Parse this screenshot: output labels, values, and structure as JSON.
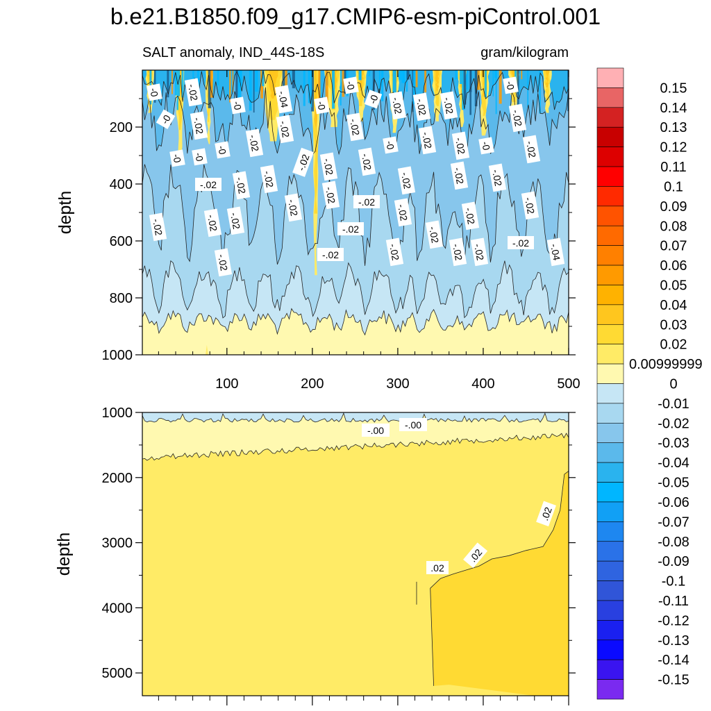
{
  "chart_data": {
    "type": "contour",
    "title": "b.e21.B1850.f09_g17.CMIP6-esm-piControl.001",
    "panels": [
      {
        "name": "upper",
        "left_string": "SALT anomaly, IND_44S-18S",
        "right_string": "gram/kilogram",
        "ylabel": "depth",
        "ylim": [
          1000,
          0
        ],
        "yticks": [
          "200",
          "400",
          "600",
          "800",
          "1000"
        ],
        "xlim": [
          1,
          500
        ],
        "xticks": [
          "100",
          "200",
          "300",
          "400",
          "500"
        ],
        "contour_labels": [
          "-0",
          "-0",
          "-.02",
          "-0",
          "-.04",
          "-0",
          "-0",
          "-0",
          "-.02",
          "-.02",
          "-0",
          "-.02",
          "-.02",
          "-.02",
          "-.02",
          "-.02",
          "-0",
          "-0",
          "-.02",
          "-0",
          "-.02",
          "-.02",
          "-0",
          "-.02",
          "-0",
          "-.02",
          "-.02",
          "-.02",
          "-.02",
          "-.02",
          "-.02",
          "-.02",
          "-.02",
          "-.02",
          "-.02",
          "-.02",
          "-.02",
          "-.02",
          "-.02",
          "-.02",
          "-.02",
          "-.02",
          "-.02",
          "-.02",
          "-.02",
          "-.02",
          "-.04",
          "-.02",
          "-.02",
          "-.02",
          "-.02",
          "-.02"
        ]
      },
      {
        "name": "lower",
        "ylabel": "depth",
        "ylim": [
          5350,
          1000
        ],
        "yticks": [
          "1000",
          "2000",
          "3000",
          "4000",
          "5000"
        ],
        "contour_labels": [
          "-.00",
          "-.00",
          ".02",
          ".02",
          ".02"
        ]
      }
    ],
    "colorbar": {
      "labels": [
        "0.15",
        "0.14",
        "0.13",
        "0.12",
        "0.11",
        "0.1",
        "0.09",
        "0.08",
        "0.07",
        "0.06",
        "0.05",
        "0.04",
        "0.03",
        "0.02",
        "0.00999999",
        "0",
        "-0.01",
        "-0.02",
        "-0.03",
        "-0.04",
        "-0.05",
        "-0.06",
        "-0.07",
        "-0.08",
        "-0.09",
        "-0.1",
        "-0.11",
        "-0.12",
        "-0.13",
        "-0.14",
        "-0.15"
      ],
      "colors": [
        "#FFB0B4",
        "#E86565",
        "#D42222",
        "#C80000",
        "#DD0000",
        "#FF0000",
        "#FF2A00",
        "#FF5300",
        "#FF6A00",
        "#FF8000",
        "#FF9A00",
        "#FFB200",
        "#FFC61E",
        "#FFDA33",
        "#FFEB66",
        "#FFF9B0",
        "#C6E6F5",
        "#A8D8F0",
        "#87C6EC",
        "#5BB9EB",
        "#2AB3EE",
        "#00B6FF",
        "#11A0F5",
        "#1E87F0",
        "#2A72E8",
        "#2F64E0",
        "#3055D8",
        "#2940E0",
        "#1A20F0",
        "#0A0AFF",
        "#3A14F0",
        "#7A2AF0"
      ]
    }
  }
}
